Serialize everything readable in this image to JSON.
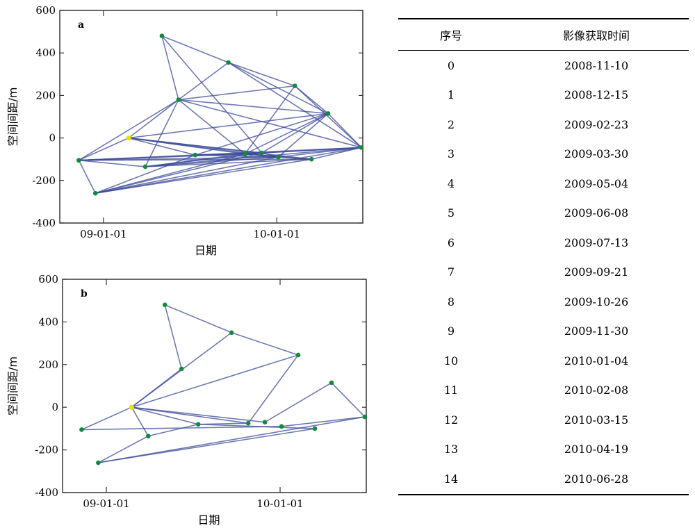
{
  "chart_data": [
    {
      "type": "scatter",
      "panel_label": "a",
      "xlabel": "日期",
      "ylabel": "空间间距/m",
      "ylim": [
        -400,
        600
      ],
      "yticks": [
        600,
        400,
        200,
        0,
        -200,
        -400
      ],
      "xticks": [
        {
          "date": "2009-01-01",
          "label": "09-01-01"
        },
        {
          "date": "2010-01-01",
          "label": "10-01-01"
        }
      ],
      "xlim": [
        "2008-10-01",
        "2010-07-01"
      ],
      "reference_point": {
        "date": "2009-02-23",
        "baseline": 0
      },
      "points": [
        {
          "date": "2008-11-10",
          "baseline": -105
        },
        {
          "date": "2008-12-15",
          "baseline": -260
        },
        {
          "date": "2009-02-23",
          "baseline": 0
        },
        {
          "date": "2009-03-30",
          "baseline": -135
        },
        {
          "date": "2009-05-04",
          "baseline": 480
        },
        {
          "date": "2009-06-08",
          "baseline": 180
        },
        {
          "date": "2009-07-13",
          "baseline": -80
        },
        {
          "date": "2009-09-21",
          "baseline": 355
        },
        {
          "date": "2009-10-26",
          "baseline": -75
        },
        {
          "date": "2009-11-30",
          "baseline": -70
        },
        {
          "date": "2010-01-04",
          "baseline": -90
        },
        {
          "date": "2010-02-08",
          "baseline": 245
        },
        {
          "date": "2010-03-15",
          "baseline": -100
        },
        {
          "date": "2010-04-19",
          "baseline": 115
        },
        {
          "date": "2010-06-28",
          "baseline": -45
        }
      ],
      "connections": [
        [
          0,
          1
        ],
        [
          0,
          2
        ],
        [
          0,
          3
        ],
        [
          0,
          5
        ],
        [
          0,
          6
        ],
        [
          0,
          8
        ],
        [
          0,
          9
        ],
        [
          0,
          10
        ],
        [
          0,
          12
        ],
        [
          1,
          6
        ],
        [
          1,
          8
        ],
        [
          1,
          9
        ],
        [
          1,
          10
        ],
        [
          1,
          12
        ],
        [
          1,
          14
        ],
        [
          2,
          5
        ],
        [
          2,
          6
        ],
        [
          2,
          8
        ],
        [
          2,
          9
        ],
        [
          2,
          10
        ],
        [
          2,
          12
        ],
        [
          2,
          13
        ],
        [
          3,
          5
        ],
        [
          3,
          8
        ],
        [
          3,
          9
        ],
        [
          3,
          10
        ],
        [
          3,
          12
        ],
        [
          3,
          14
        ],
        [
          4,
          5
        ],
        [
          4,
          7
        ],
        [
          4,
          9
        ],
        [
          5,
          7
        ],
        [
          5,
          8
        ],
        [
          5,
          11
        ],
        [
          5,
          13
        ],
        [
          5,
          14
        ],
        [
          6,
          8
        ],
        [
          6,
          9
        ],
        [
          6,
          10
        ],
        [
          6,
          13
        ],
        [
          6,
          14
        ],
        [
          7,
          11
        ],
        [
          7,
          13
        ],
        [
          7,
          14
        ],
        [
          8,
          10
        ],
        [
          8,
          11
        ],
        [
          8,
          12
        ],
        [
          8,
          13
        ],
        [
          8,
          14
        ],
        [
          9,
          10
        ],
        [
          9,
          13
        ],
        [
          9,
          14
        ],
        [
          10,
          12
        ],
        [
          10,
          13
        ],
        [
          10,
          14
        ],
        [
          11,
          13
        ],
        [
          11,
          14
        ],
        [
          12,
          14
        ],
        [
          13,
          14
        ]
      ]
    },
    {
      "type": "scatter",
      "panel_label": "b",
      "xlabel": "日期",
      "ylabel": "空间间距/m",
      "ylim": [
        -400,
        600
      ],
      "yticks": [
        600,
        400,
        200,
        0,
        -200,
        -400
      ],
      "xticks": [
        {
          "date": "2009-01-01",
          "label": "09-01-01"
        },
        {
          "date": "2010-01-01",
          "label": "10-01-01"
        }
      ],
      "xlim": [
        "2008-10-01",
        "2010-07-01"
      ],
      "reference_point": {
        "date": "2009-02-23",
        "baseline": 0
      },
      "points": [
        {
          "date": "2008-11-10",
          "baseline": -105
        },
        {
          "date": "2008-12-15",
          "baseline": -260
        },
        {
          "date": "2009-02-23",
          "baseline": 0
        },
        {
          "date": "2009-03-30",
          "baseline": -135
        },
        {
          "date": "2009-05-04",
          "baseline": 480
        },
        {
          "date": "2009-06-08",
          "baseline": 180
        },
        {
          "date": "2009-07-13",
          "baseline": -80
        },
        {
          "date": "2009-09-21",
          "baseline": 350
        },
        {
          "date": "2009-10-26",
          "baseline": -75
        },
        {
          "date": "2009-11-30",
          "baseline": -70
        },
        {
          "date": "2010-01-04",
          "baseline": -90
        },
        {
          "date": "2010-02-08",
          "baseline": 245
        },
        {
          "date": "2010-03-15",
          "baseline": -100
        },
        {
          "date": "2010-04-19",
          "baseline": 115
        },
        {
          "date": "2010-06-28",
          "baseline": -45
        }
      ],
      "connections": [
        [
          0,
          2
        ],
        [
          0,
          10
        ],
        [
          1,
          3
        ],
        [
          1,
          12
        ],
        [
          1,
          14
        ],
        [
          2,
          5
        ],
        [
          2,
          7
        ],
        [
          2,
          6
        ],
        [
          2,
          8
        ],
        [
          2,
          9
        ],
        [
          2,
          11
        ],
        [
          3,
          2
        ],
        [
          3,
          6
        ],
        [
          4,
          5
        ],
        [
          4,
          7
        ],
        [
          6,
          8
        ],
        [
          7,
          11
        ],
        [
          8,
          11
        ],
        [
          9,
          13
        ],
        [
          10,
          14
        ],
        [
          6,
          12
        ],
        [
          13,
          14
        ]
      ]
    }
  ],
  "table": {
    "headers": [
      "序号",
      "影像获取时间"
    ],
    "rows": [
      [
        "0",
        "2008-11-10"
      ],
      [
        "1",
        "2008-12-15"
      ],
      [
        "2",
        "2009-02-23"
      ],
      [
        "3",
        "2009-03-30"
      ],
      [
        "4",
        "2009-05-04"
      ],
      [
        "5",
        "2009-06-08"
      ],
      [
        "6",
        "2009-07-13"
      ],
      [
        "7",
        "2009-09-21"
      ],
      [
        "8",
        "2009-10-26"
      ],
      [
        "9",
        "2009-11-30"
      ],
      [
        "10",
        "2010-01-04"
      ],
      [
        "11",
        "2010-02-08"
      ],
      [
        "12",
        "2010-03-15"
      ],
      [
        "13",
        "2010-04-19"
      ],
      [
        "14",
        "2010-06-28"
      ]
    ]
  },
  "colors": {
    "edge": "#3d4c9a",
    "point": "#118a3c",
    "reference_point": "#e8e000",
    "frame": "#333333"
  }
}
